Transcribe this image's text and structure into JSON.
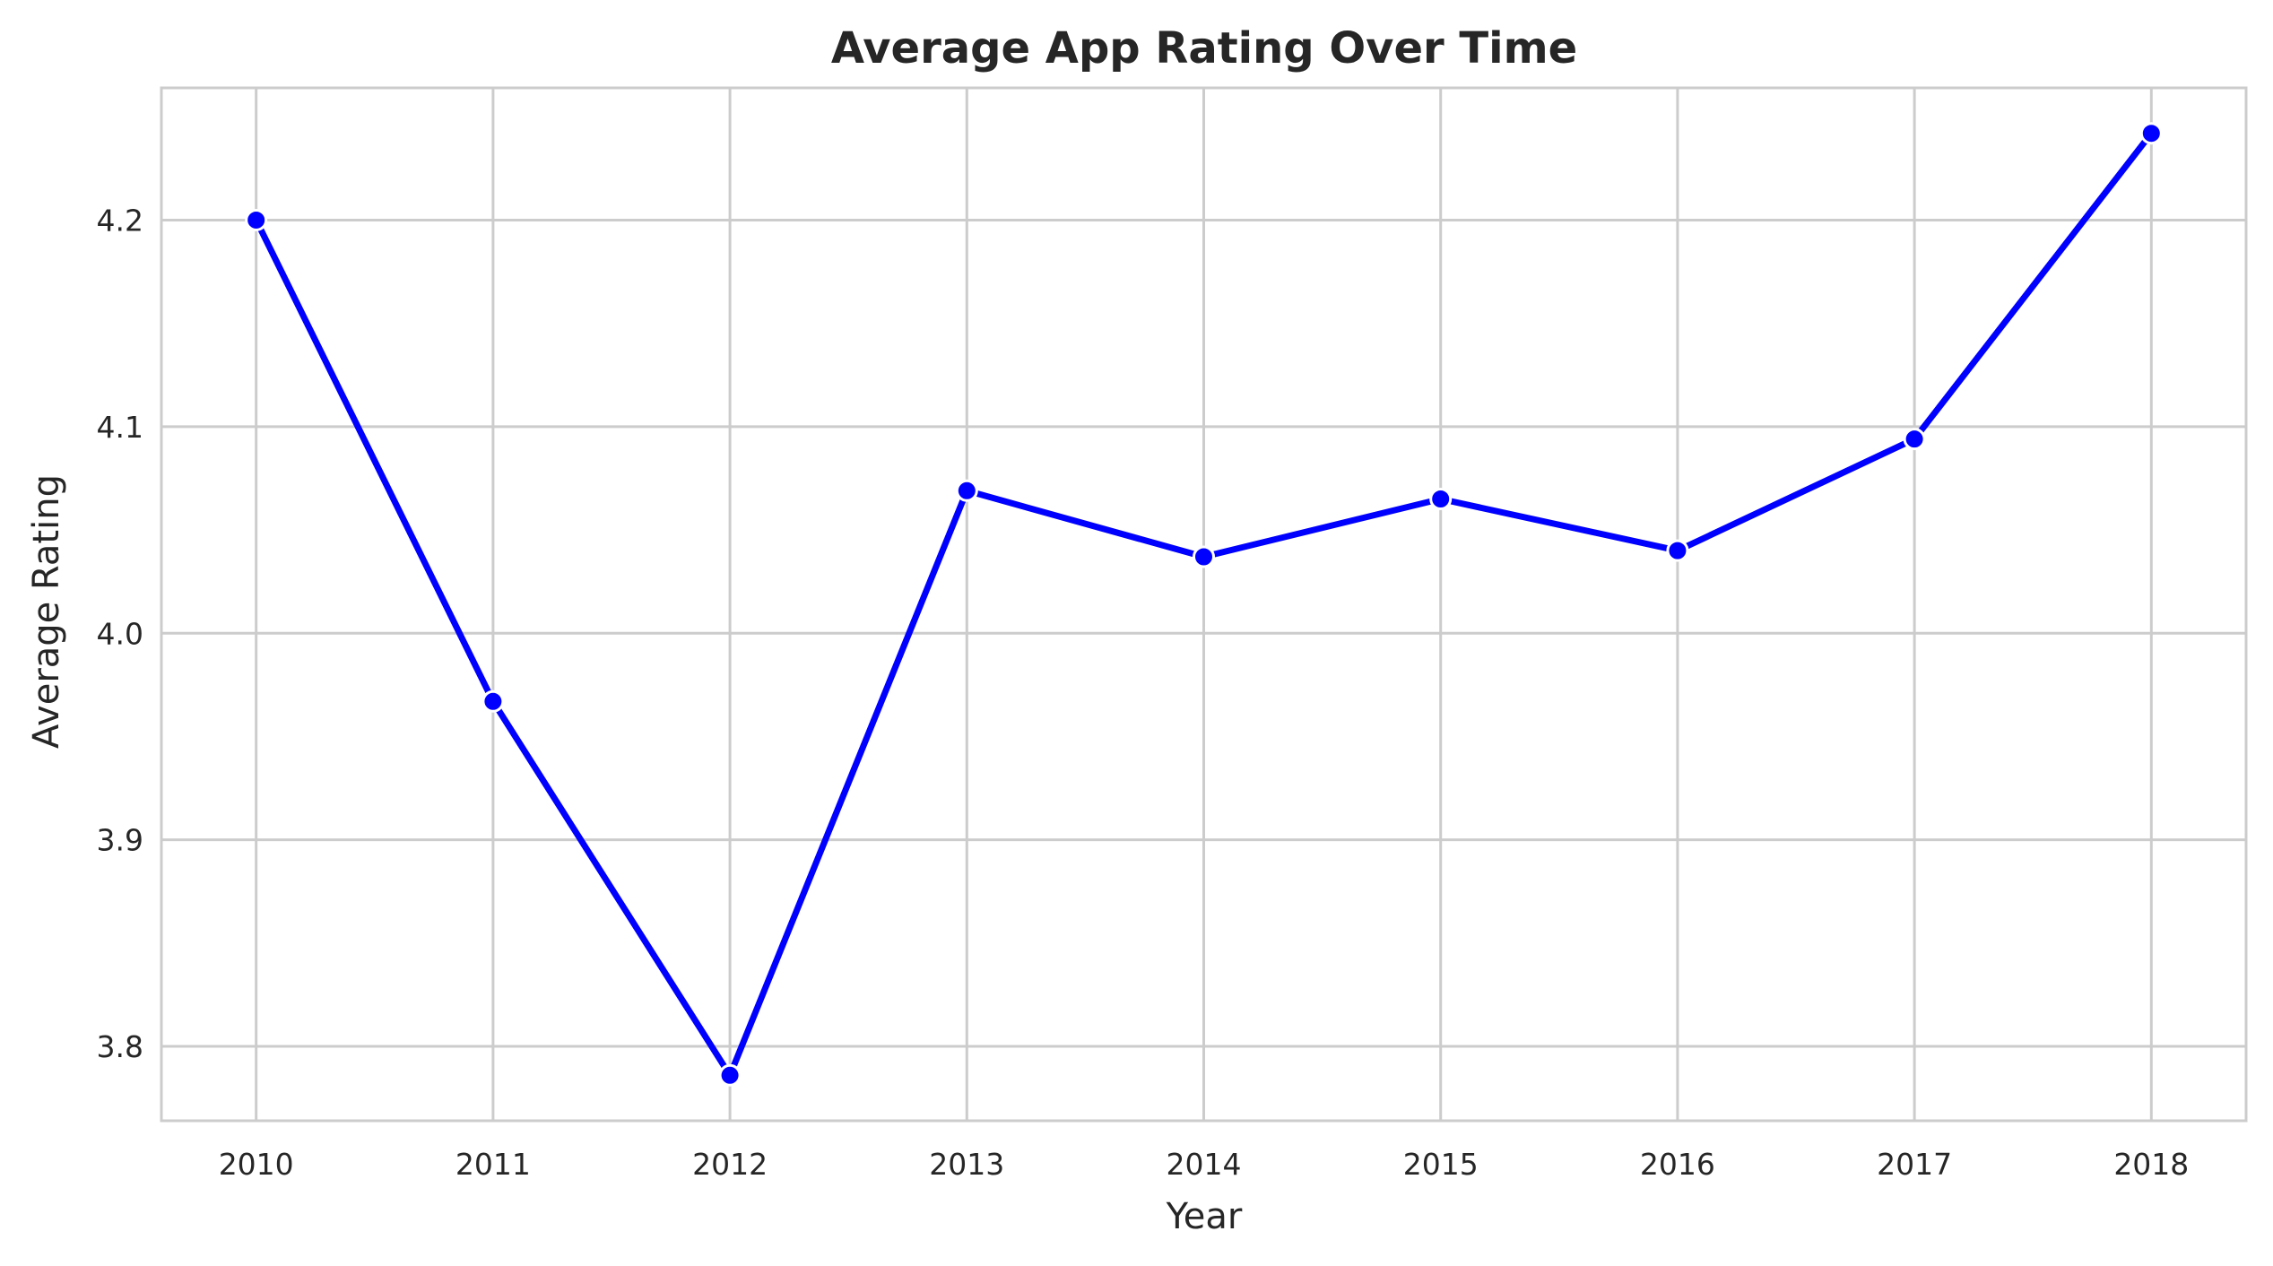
{
  "chart_data": {
    "type": "line",
    "title": "Average App Rating Over Time",
    "xlabel": "Year",
    "ylabel": "Average Rating",
    "x": [
      2010,
      2011,
      2012,
      2013,
      2014,
      2015,
      2016,
      2017,
      2018
    ],
    "series": [
      {
        "values": [
          4.2,
          3.967,
          3.786,
          4.069,
          4.037,
          4.065,
          4.04,
          4.094,
          4.242
        ],
        "color": "#0000ff",
        "marker": "circle"
      }
    ],
    "xticks": [
      "2010",
      "2011",
      "2012",
      "2013",
      "2014",
      "2015",
      "2016",
      "2017",
      "2018"
    ],
    "yticks": [
      "3.8",
      "3.9",
      "4.0",
      "4.1",
      "4.2"
    ],
    "ytick_values": [
      3.8,
      3.9,
      4.0,
      4.1,
      4.2
    ],
    "xlim": [
      2009.6,
      2018.4
    ],
    "ylim": [
      3.764,
      4.264
    ],
    "grid": true,
    "legend": "none"
  }
}
